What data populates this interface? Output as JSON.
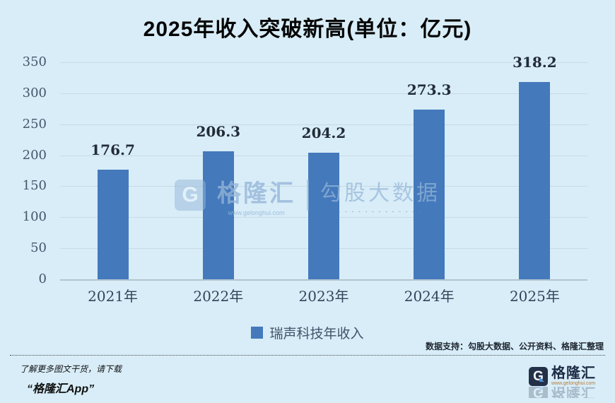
{
  "title": "2025年收入突破新高(单位：亿元)",
  "chart_data": {
    "type": "bar",
    "title": "2025年收入突破新高(单位：亿元)",
    "categories": [
      "2021年",
      "2022年",
      "2023年",
      "2024年",
      "2025年"
    ],
    "series": [
      {
        "name": "瑞声科技年收入",
        "values": [
          176.7,
          206.3,
          204.2,
          273.3,
          318.2
        ]
      }
    ],
    "data_labels": [
      "176.7",
      "206.3",
      "204.2",
      "273.3",
      "318.2"
    ],
    "xlabel": "",
    "ylabel": "",
    "ylim": [
      0,
      350
    ],
    "ytick_step": 50,
    "yticks": [
      0,
      50,
      100,
      150,
      200,
      250,
      300,
      350
    ],
    "grid": true,
    "legend_position": "bottom",
    "bar_color": "#4479BC"
  },
  "legend": {
    "label": "瑞声科技年收入",
    "swatch_color": "#4479BC"
  },
  "watermark": {
    "logo_letter": "G",
    "brand": "格隆汇",
    "brand_url": "www.gelonghui.com",
    "divider": "|",
    "partner": "勾股大数据",
    "tagline_dashes": "- - - - - - - - - - - - -"
  },
  "footer": {
    "source_note": "数据支持：勾股大数据、公开资料、格隆汇整理",
    "promo_line1": "了解更多图文干货，请下载",
    "promo_line2": "“格隆汇App”",
    "logo_letter": "G",
    "logo_text": "格隆汇",
    "logo_url": "www.gelonghui.com"
  },
  "colors": {
    "background": "#D8EDF8",
    "bar": "#4479BC",
    "gridline": "#C9DAE4",
    "axis_line": "#B2C4CE",
    "tick_text": "#44566B",
    "value_text": "#222C38",
    "title_text": "#050505",
    "logo_navy": "#243048",
    "logo_accent": "#4A8FD4",
    "watermark_blue": "#94B5D7"
  }
}
